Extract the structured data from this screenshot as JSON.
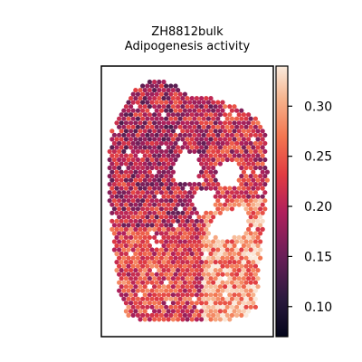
{
  "chart_data": {
    "type": "heatmap",
    "title": "ZH8812bulk",
    "subtitle": "Adipogenesis activity",
    "colormap": "rocket",
    "colorbar": {
      "range": [
        0.07,
        0.34
      ],
      "ticks": [
        0.1,
        0.15,
        0.2,
        0.25,
        0.3
      ],
      "tick_labels": [
        "0.10",
        "0.15",
        "0.20",
        "0.25",
        "0.30"
      ]
    },
    "regions": [
      {
        "area": "outer-tissue",
        "approx_value": 0.2
      },
      {
        "area": "upper-left-core",
        "approx_value": 0.19
      },
      {
        "area": "bottom-right",
        "approx_value": 0.29
      },
      {
        "area": "center-patches",
        "approx_value": 0.25
      }
    ],
    "grid": false,
    "axes_visible": false
  }
}
